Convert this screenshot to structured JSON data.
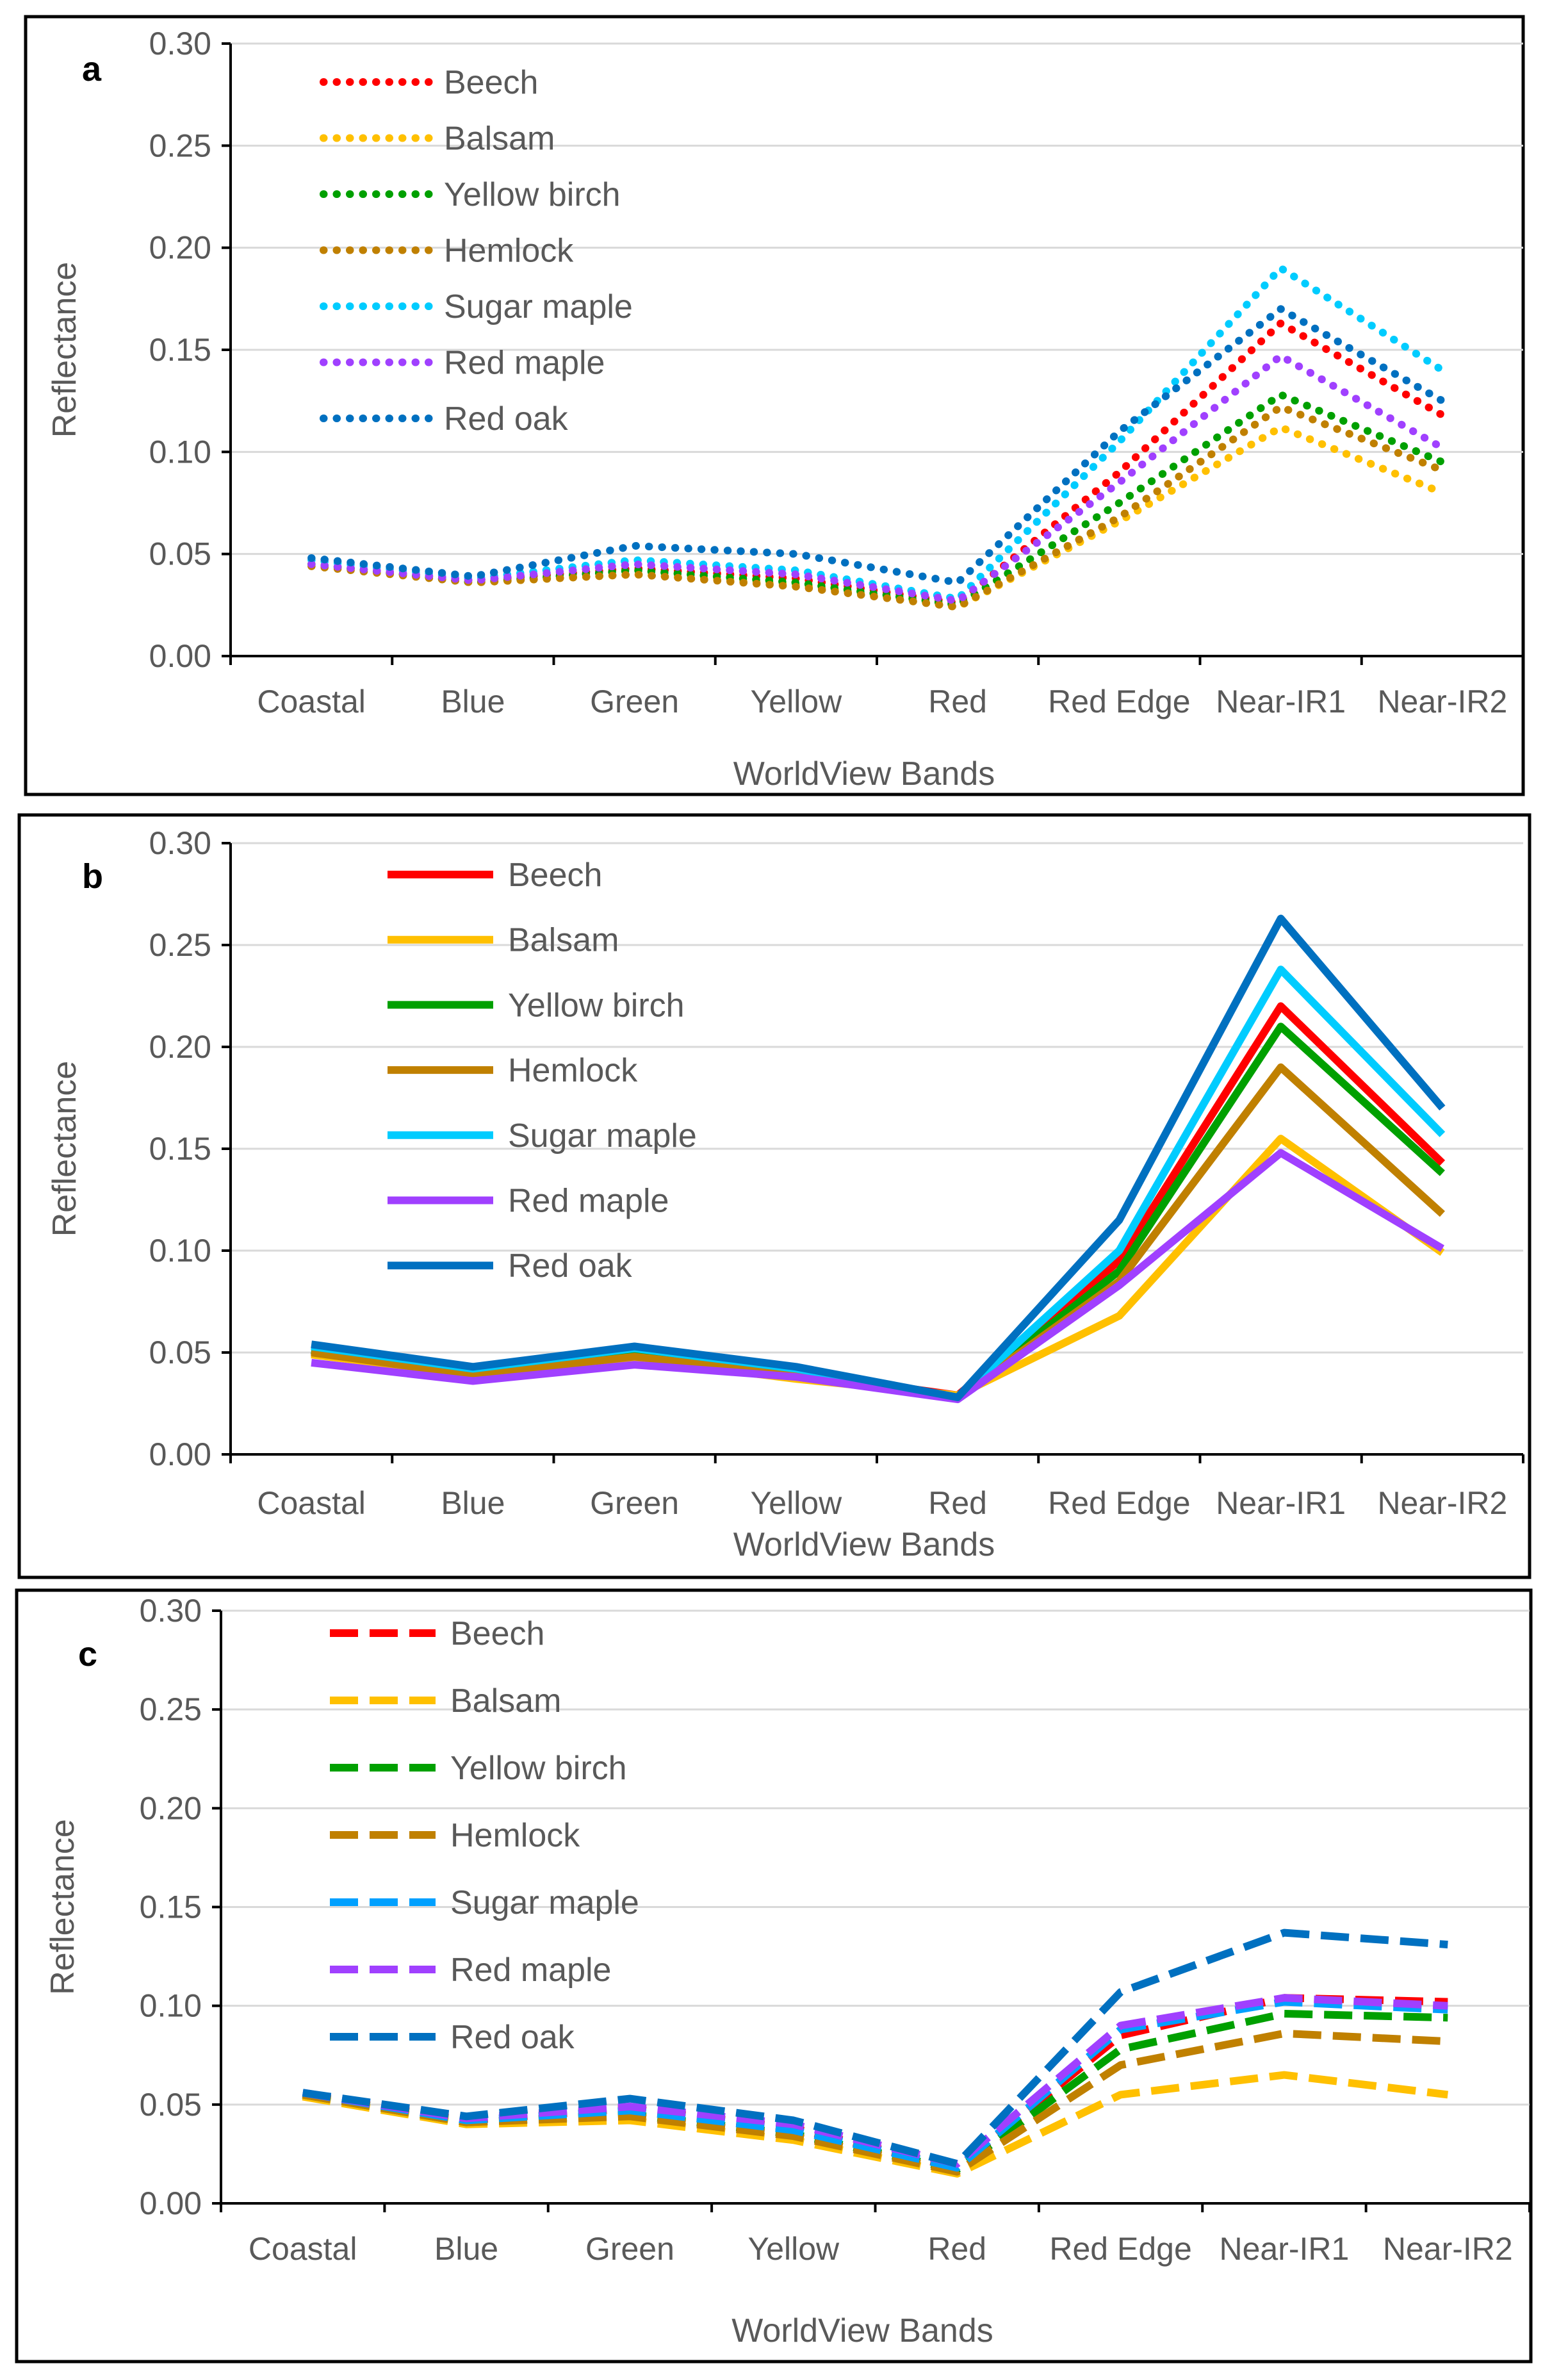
{
  "chart_data": [
    {
      "type": "line",
      "panel_label": "a",
      "line_style": "dotted",
      "xlabel": "WorldView Bands",
      "ylabel": "Reflectance",
      "ylim": [
        0,
        0.3
      ],
      "yticks": [
        "0.00",
        "0.05",
        "0.10",
        "0.15",
        "0.20",
        "0.25",
        "0.30"
      ],
      "categories": [
        "Coastal",
        "Blue",
        "Green",
        "Yellow",
        "Red",
        "Red Edge",
        "Near-IR1",
        "Near-IR2"
      ],
      "grid": true,
      "legend_position": "top-left",
      "series": [
        {
          "name": "Beech",
          "color": "#ff0000",
          "values": [
            0.045,
            0.037,
            0.043,
            0.038,
            0.026,
            0.09,
            0.163,
            0.118
          ]
        },
        {
          "name": "Balsam",
          "color": "#ffc000",
          "values": [
            0.045,
            0.036,
            0.04,
            0.035,
            0.024,
            0.066,
            0.112,
            0.08
          ]
        },
        {
          "name": "Yellow birch",
          "color": "#00a000",
          "values": [
            0.045,
            0.036,
            0.042,
            0.036,
            0.025,
            0.075,
            0.128,
            0.095
          ]
        },
        {
          "name": "Hemlock",
          "color": "#c08000",
          "values": [
            0.044,
            0.036,
            0.04,
            0.034,
            0.024,
            0.068,
            0.122,
            0.091
          ]
        },
        {
          "name": "Sugar maple",
          "color": "#00ccff",
          "values": [
            0.047,
            0.038,
            0.047,
            0.042,
            0.028,
            0.105,
            0.19,
            0.14
          ]
        },
        {
          "name": "Red maple",
          "color": "#a040ff",
          "values": [
            0.045,
            0.037,
            0.045,
            0.04,
            0.027,
            0.085,
            0.147,
            0.102
          ]
        },
        {
          "name": "Red oak",
          "color": "#0070c0",
          "values": [
            0.048,
            0.039,
            0.054,
            0.05,
            0.036,
            0.11,
            0.17,
            0.125
          ]
        }
      ]
    },
    {
      "type": "line",
      "panel_label": "b",
      "line_style": "solid",
      "xlabel": "WorldView Bands",
      "ylabel": "Reflectance",
      "ylim": [
        0,
        0.3
      ],
      "yticks": [
        "0.00",
        "0.05",
        "0.10",
        "0.15",
        "0.20",
        "0.25",
        "0.30"
      ],
      "categories": [
        "Coastal",
        "Blue",
        "Green",
        "Yellow",
        "Red",
        "Red Edge",
        "Near-IR1",
        "Near-IR2"
      ],
      "grid": true,
      "legend_position": "top-left",
      "series": [
        {
          "name": "Beech",
          "color": "#ff0000",
          "values": [
            0.051,
            0.04,
            0.049,
            0.04,
            0.029,
            0.095,
            0.22,
            0.143
          ]
        },
        {
          "name": "Balsam",
          "color": "#ffc000",
          "values": [
            0.049,
            0.039,
            0.047,
            0.037,
            0.029,
            0.068,
            0.155,
            0.099
          ]
        },
        {
          "name": "Yellow birch",
          "color": "#00a000",
          "values": [
            0.051,
            0.04,
            0.049,
            0.04,
            0.028,
            0.09,
            0.21,
            0.138
          ]
        },
        {
          "name": "Hemlock",
          "color": "#c08000",
          "values": [
            0.05,
            0.039,
            0.048,
            0.039,
            0.028,
            0.085,
            0.19,
            0.118
          ]
        },
        {
          "name": "Sugar maple",
          "color": "#00ccff",
          "values": [
            0.053,
            0.042,
            0.052,
            0.042,
            0.028,
            0.1,
            0.238,
            0.157
          ]
        },
        {
          "name": "Red maple",
          "color": "#a040ff",
          "values": [
            0.045,
            0.036,
            0.044,
            0.038,
            0.027,
            0.083,
            0.148,
            0.101
          ]
        },
        {
          "name": "Red oak",
          "color": "#0070c0",
          "values": [
            0.054,
            0.043,
            0.053,
            0.043,
            0.028,
            0.115,
            0.263,
            0.17
          ]
        }
      ]
    },
    {
      "type": "line",
      "panel_label": "c",
      "line_style": "dashed",
      "xlabel": "WorldView Bands",
      "ylabel": "Reflectance",
      "ylim": [
        0,
        0.3
      ],
      "yticks": [
        "0.00",
        "0.05",
        "0.10",
        "0.15",
        "0.20",
        "0.25",
        "0.30"
      ],
      "categories": [
        "Coastal",
        "Blue",
        "Green",
        "Yellow",
        "Red",
        "Red Edge",
        "Near-IR1",
        "Near-IR2"
      ],
      "grid": true,
      "legend_position": "top-left",
      "series": [
        {
          "name": "Beech",
          "color": "#ff0000",
          "values": [
            0.055,
            0.042,
            0.048,
            0.038,
            0.018,
            0.085,
            0.104,
            0.102
          ]
        },
        {
          "name": "Balsam",
          "color": "#ffc000",
          "values": [
            0.054,
            0.04,
            0.042,
            0.032,
            0.015,
            0.055,
            0.065,
            0.055
          ]
        },
        {
          "name": "Yellow birch",
          "color": "#00a000",
          "values": [
            0.055,
            0.041,
            0.045,
            0.035,
            0.017,
            0.078,
            0.096,
            0.094
          ]
        },
        {
          "name": "Hemlock",
          "color": "#c08000",
          "values": [
            0.055,
            0.041,
            0.044,
            0.034,
            0.016,
            0.07,
            0.086,
            0.082
          ]
        },
        {
          "name": "Sugar maple",
          "color": "#00a0ff",
          "values": [
            0.056,
            0.042,
            0.047,
            0.037,
            0.018,
            0.088,
            0.102,
            0.098
          ]
        },
        {
          "name": "Red maple",
          "color": "#a040ff",
          "values": [
            0.056,
            0.043,
            0.049,
            0.04,
            0.02,
            0.09,
            0.104,
            0.1
          ]
        },
        {
          "name": "Red oak",
          "color": "#0070c0",
          "values": [
            0.056,
            0.044,
            0.053,
            0.042,
            0.02,
            0.107,
            0.137,
            0.131
          ]
        }
      ]
    }
  ]
}
